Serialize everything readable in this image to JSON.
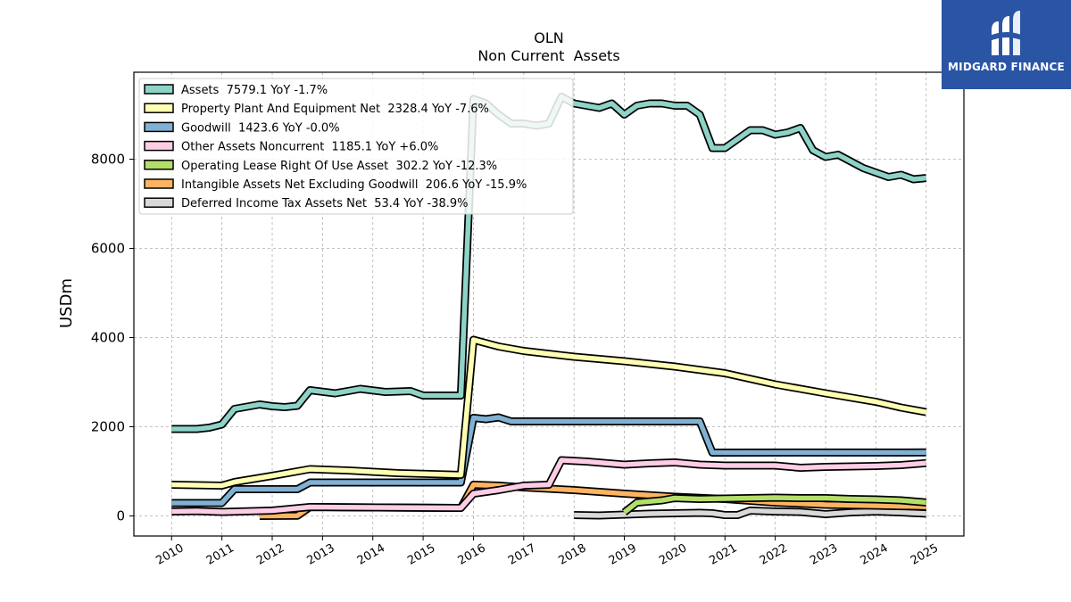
{
  "logo": {
    "text": "MIDGARD FINANCE",
    "icon": "stylized-mm-icon",
    "background": "#2a55a5"
  },
  "chart_data": {
    "type": "line",
    "title": "OLN",
    "subtitle": "Non Current  Assets",
    "ylabel": "USDm",
    "xlabel": "",
    "ylim": [
      -450,
      9950
    ],
    "xlim": [
      2009.25,
      2025.75
    ],
    "yticks": [
      "0",
      "2000",
      "4000",
      "6000",
      "8000"
    ],
    "ytick_values": [
      0,
      2000,
      4000,
      6000,
      8000
    ],
    "xticks": [
      "2010",
      "2011",
      "2012",
      "2013",
      "2014",
      "2015",
      "2016",
      "2017",
      "2018",
      "2019",
      "2020",
      "2021",
      "2022",
      "2023",
      "2024",
      "2025"
    ],
    "xtick_values": [
      2010,
      2011,
      2012,
      2013,
      2014,
      2015,
      2016,
      2017,
      2018,
      2019,
      2020,
      2021,
      2022,
      2023,
      2024,
      2025
    ],
    "grid": true,
    "legend_position": "top-left",
    "series": [
      {
        "name": "Deferred Income Tax Assets Net",
        "legend": "Deferred Income Tax Assets Net  53.4 YoY -38.9%",
        "color": "#d9d9d9",
        "points": [
          [
            2018.0,
            20
          ],
          [
            2018.5,
            10
          ],
          [
            2019.0,
            30
          ],
          [
            2019.5,
            50
          ],
          [
            2020.0,
            60
          ],
          [
            2020.5,
            70
          ],
          [
            2020.75,
            60
          ],
          [
            2021.0,
            20
          ],
          [
            2021.25,
            20
          ],
          [
            2021.5,
            120
          ],
          [
            2022.0,
            100
          ],
          [
            2022.5,
            90
          ],
          [
            2023.0,
            40
          ],
          [
            2023.5,
            80
          ],
          [
            2024.0,
            100
          ],
          [
            2024.5,
            80
          ],
          [
            2025.0,
            53
          ]
        ]
      },
      {
        "name": "Intangible Assets Net Excluding Goodwill",
        "legend": "Intangible Assets Net Excluding Goodwill  206.6 YoY -15.9%",
        "color": "#fdb462",
        "points": [
          [
            2011.75,
            0
          ],
          [
            2012.5,
            5
          ],
          [
            2012.75,
            200
          ],
          [
            2015.75,
            180
          ],
          [
            2016.0,
            700
          ],
          [
            2016.5,
            680
          ],
          [
            2017.0,
            640
          ],
          [
            2018.0,
            580
          ],
          [
            2019.0,
            500
          ],
          [
            2020.0,
            430
          ],
          [
            2021.0,
            380
          ],
          [
            2022.0,
            300
          ],
          [
            2023.0,
            250
          ],
          [
            2024.0,
            230
          ],
          [
            2025.0,
            207
          ]
        ]
      },
      {
        "name": "Operating Lease Right Of Use Asset",
        "legend": "Operating Lease Right Of Use Asset  302.2 YoY -12.3%",
        "color": "#b3de69",
        "points": [
          [
            2019.0,
            80
          ],
          [
            2019.25,
            300
          ],
          [
            2019.75,
            350
          ],
          [
            2020.0,
            400
          ],
          [
            2020.5,
            380
          ],
          [
            2021.0,
            390
          ],
          [
            2021.5,
            400
          ],
          [
            2022.0,
            410
          ],
          [
            2022.5,
            400
          ],
          [
            2023.0,
            400
          ],
          [
            2023.5,
            380
          ],
          [
            2024.0,
            370
          ],
          [
            2024.5,
            350
          ],
          [
            2025.0,
            302
          ]
        ]
      },
      {
        "name": "Other Assets Noncurrent",
        "legend": "Other Assets Noncurrent  1185.1 YoY +6.0%",
        "color": "#fccde5",
        "points": [
          [
            2010.0,
            100
          ],
          [
            2010.5,
            110
          ],
          [
            2011.0,
            90
          ],
          [
            2012.0,
            120
          ],
          [
            2012.75,
            200
          ],
          [
            2015.75,
            180
          ],
          [
            2016.0,
            500
          ],
          [
            2016.5,
            580
          ],
          [
            2017.0,
            680
          ],
          [
            2017.5,
            700
          ],
          [
            2017.75,
            1250
          ],
          [
            2018.25,
            1220
          ],
          [
            2019.0,
            1150
          ],
          [
            2019.5,
            1180
          ],
          [
            2020.0,
            1200
          ],
          [
            2020.5,
            1150
          ],
          [
            2021.0,
            1130
          ],
          [
            2022.0,
            1130
          ],
          [
            2022.5,
            1080
          ],
          [
            2023.0,
            1100
          ],
          [
            2024.0,
            1120
          ],
          [
            2024.5,
            1140
          ],
          [
            2025.0,
            1185
          ]
        ]
      },
      {
        "name": "Goodwill",
        "legend": "Goodwill  1423.6 YoY -0.0%",
        "color": "#80b1d3",
        "points": [
          [
            2010.0,
            290
          ],
          [
            2011.0,
            290
          ],
          [
            2011.25,
            600
          ],
          [
            2012.5,
            600
          ],
          [
            2012.75,
            750
          ],
          [
            2015.75,
            750
          ],
          [
            2016.0,
            2200
          ],
          [
            2016.25,
            2170
          ],
          [
            2016.5,
            2210
          ],
          [
            2016.75,
            2120
          ],
          [
            2020.5,
            2120
          ],
          [
            2020.75,
            1420
          ],
          [
            2025.0,
            1424
          ]
        ]
      },
      {
        "name": "Property Plant And Equipment Net",
        "legend": "Property Plant And Equipment Net  2328.4 YoY -7.6%",
        "color": "#ffffb3",
        "points": [
          [
            2010.0,
            700
          ],
          [
            2011.0,
            680
          ],
          [
            2011.25,
            760
          ],
          [
            2012.0,
            900
          ],
          [
            2012.75,
            1050
          ],
          [
            2013.5,
            1020
          ],
          [
            2014.5,
            960
          ],
          [
            2015.75,
            920
          ],
          [
            2016.0,
            3950
          ],
          [
            2016.5,
            3800
          ],
          [
            2017.0,
            3700
          ],
          [
            2018.0,
            3570
          ],
          [
            2019.0,
            3470
          ],
          [
            2020.0,
            3350
          ],
          [
            2021.0,
            3200
          ],
          [
            2022.0,
            2950
          ],
          [
            2023.0,
            2750
          ],
          [
            2024.0,
            2560
          ],
          [
            2024.5,
            2430
          ],
          [
            2025.0,
            2328
          ]
        ]
      },
      {
        "name": "Assets",
        "legend": "Assets  7579.1 YoY -1.7%",
        "color": "#8dd3c7",
        "points": [
          [
            2010.0,
            1950
          ],
          [
            2010.5,
            1950
          ],
          [
            2010.75,
            1980
          ],
          [
            2011.0,
            2050
          ],
          [
            2011.25,
            2400
          ],
          [
            2011.75,
            2500
          ],
          [
            2012.0,
            2460
          ],
          [
            2012.25,
            2440
          ],
          [
            2012.5,
            2470
          ],
          [
            2012.75,
            2820
          ],
          [
            2013.25,
            2750
          ],
          [
            2013.75,
            2850
          ],
          [
            2014.25,
            2780
          ],
          [
            2014.75,
            2800
          ],
          [
            2015.0,
            2700
          ],
          [
            2015.75,
            2700
          ],
          [
            2016.0,
            9350
          ],
          [
            2016.25,
            9250
          ],
          [
            2016.5,
            9000
          ],
          [
            2016.75,
            8800
          ],
          [
            2017.0,
            8800
          ],
          [
            2017.25,
            8750
          ],
          [
            2017.5,
            8800
          ],
          [
            2017.75,
            9400
          ],
          [
            2018.0,
            9250
          ],
          [
            2018.5,
            9150
          ],
          [
            2018.75,
            9250
          ],
          [
            2019.0,
            9000
          ],
          [
            2019.25,
            9200
          ],
          [
            2019.5,
            9250
          ],
          [
            2019.75,
            9250
          ],
          [
            2020.0,
            9200
          ],
          [
            2020.25,
            9200
          ],
          [
            2020.5,
            9000
          ],
          [
            2020.75,
            8250
          ],
          [
            2021.0,
            8250
          ],
          [
            2021.25,
            8450
          ],
          [
            2021.5,
            8650
          ],
          [
            2021.75,
            8650
          ],
          [
            2022.0,
            8550
          ],
          [
            2022.25,
            8600
          ],
          [
            2022.5,
            8700
          ],
          [
            2022.75,
            8200
          ],
          [
            2023.0,
            8050
          ],
          [
            2023.25,
            8100
          ],
          [
            2023.5,
            7950
          ],
          [
            2023.75,
            7800
          ],
          [
            2024.0,
            7700
          ],
          [
            2024.25,
            7600
          ],
          [
            2024.5,
            7650
          ],
          [
            2024.75,
            7550
          ],
          [
            2025.0,
            7579
          ]
        ]
      }
    ]
  }
}
